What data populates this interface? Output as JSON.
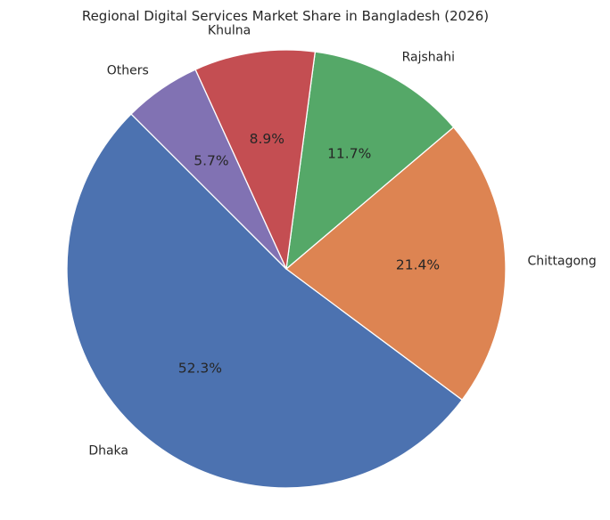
{
  "chart_data": {
    "type": "pie",
    "title": "Regional Digital Services Market Share in Bangladesh (2026)",
    "categories": [
      "Dhaka",
      "Chittagong",
      "Rajshahi",
      "Khulna",
      "Others"
    ],
    "values": [
      52.3,
      21.4,
      11.7,
      8.9,
      5.7
    ],
    "value_labels": [
      "52.3%",
      "21.4%",
      "11.7%",
      "8.9%",
      "5.7%"
    ],
    "colors": [
      "#4c72b0",
      "#dd8452",
      "#55a868",
      "#c44e52",
      "#8172b3"
    ],
    "start_angle_deg": 135,
    "direction": "counterclockwise",
    "legend": "none",
    "grid": false
  }
}
